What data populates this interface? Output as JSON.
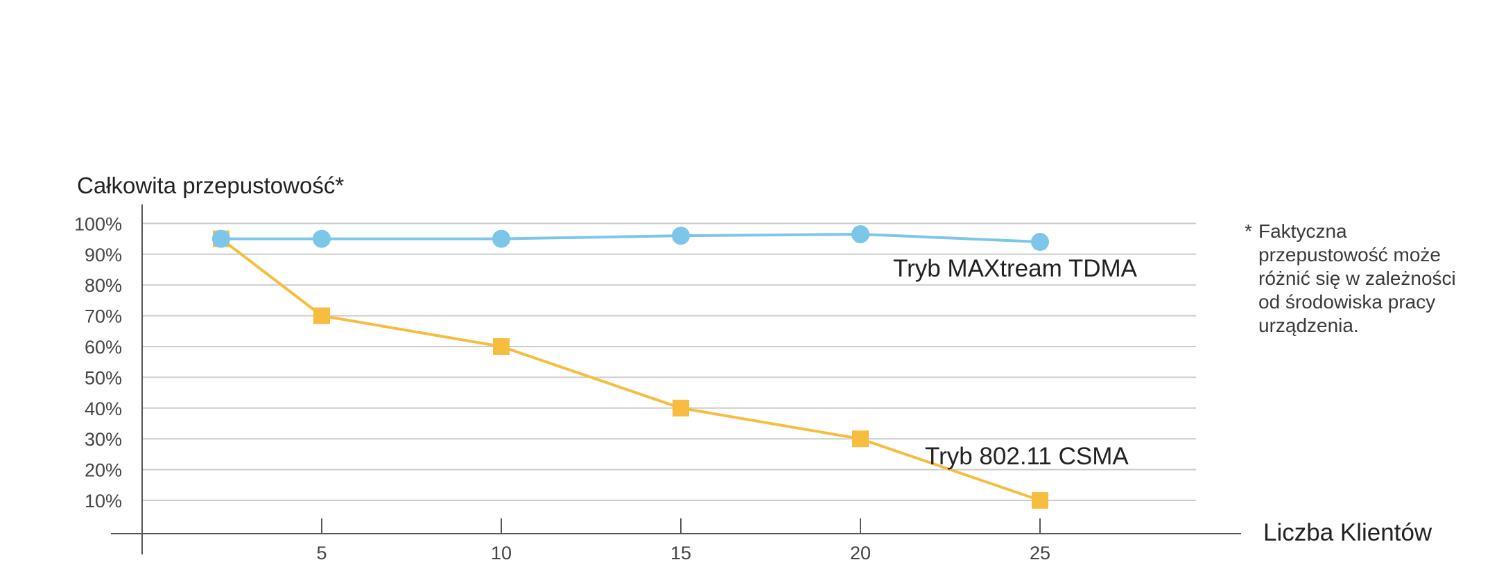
{
  "chart_data": {
    "type": "line",
    "title": "",
    "ylabel": "Całkowita przepustowość*",
    "xlabel": "Liczba Klientów",
    "ylim": [
      0,
      100
    ],
    "xlim": [
      0,
      30
    ],
    "grid": true,
    "y_tick_labels": [
      "10%",
      "20%",
      "30%",
      "40%",
      "50%",
      "60%",
      "70%",
      "80%",
      "90%",
      "100%"
    ],
    "y_ticks": [
      10,
      20,
      30,
      40,
      50,
      60,
      70,
      80,
      90,
      100
    ],
    "x_tick_labels": [
      "5",
      "10",
      "15",
      "20",
      "25"
    ],
    "x_ticks": [
      5,
      10,
      15,
      20,
      25
    ],
    "series": [
      {
        "name": "Tryb MAXtream TDMA",
        "color": "#7cc6ea",
        "marker": "circle",
        "x": [
          2.2,
          5,
          10,
          15,
          20,
          25
        ],
        "values": [
          95,
          95,
          95,
          96,
          96.5,
          94
        ]
      },
      {
        "name": "Tryb 802.11 CSMA",
        "color": "#f6bd40",
        "marker": "square",
        "x": [
          2.2,
          5,
          10,
          15,
          20,
          25
        ],
        "values": [
          95,
          70,
          60,
          40,
          30,
          10
        ]
      }
    ]
  },
  "footnote": {
    "marker": "*",
    "text": "Faktyczna przepustowość może różnić się w zależności od środowiska pracy urządzenia."
  }
}
